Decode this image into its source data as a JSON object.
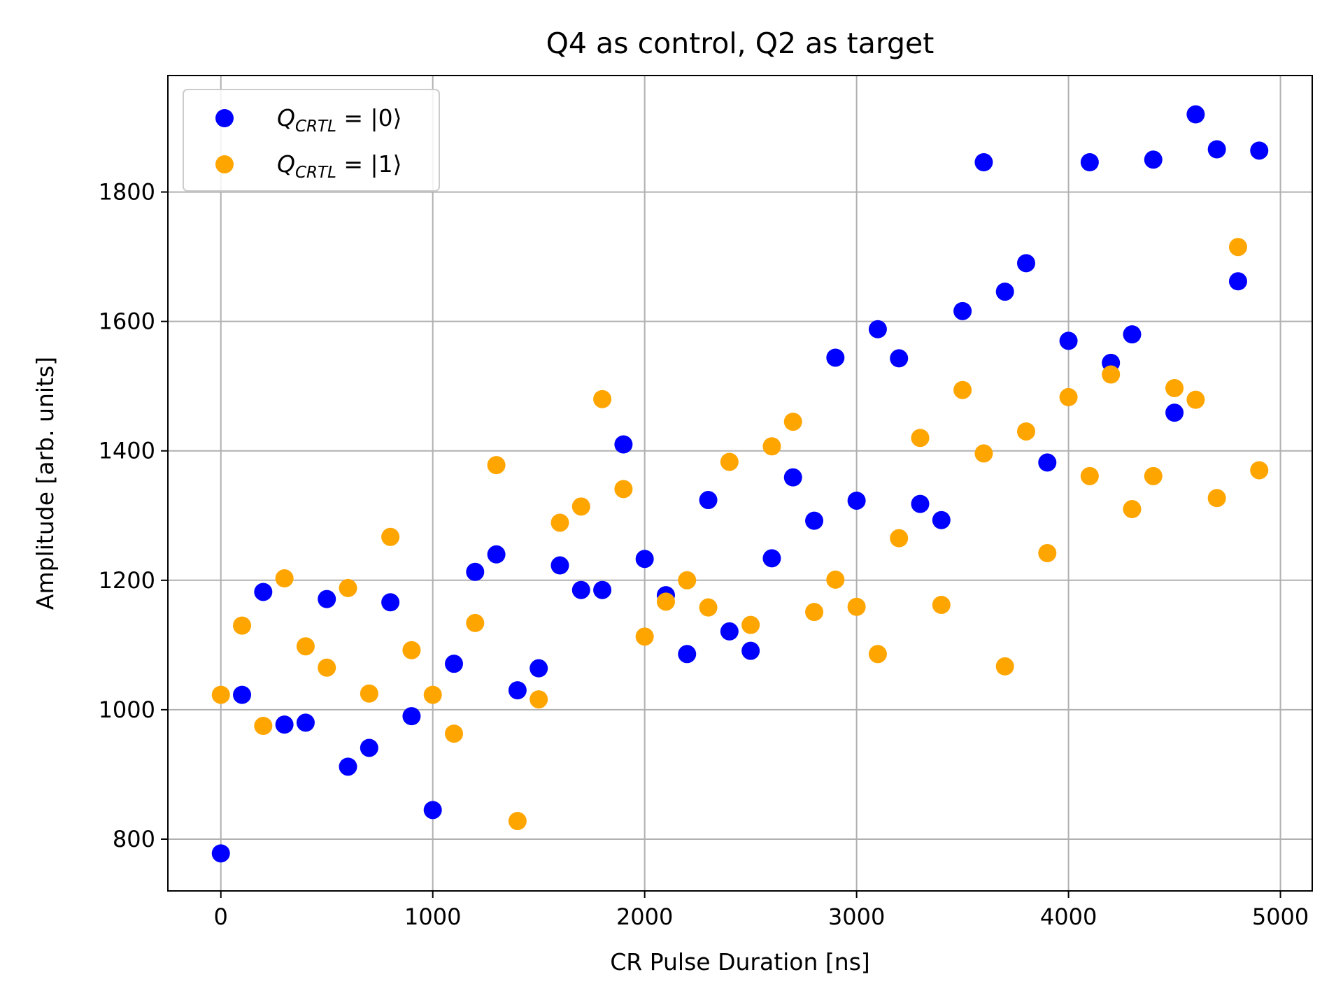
{
  "chart_data": {
    "type": "scatter",
    "title": "Q4 as control, Q2 as target",
    "xlabel": "CR Pulse Duration [ns]",
    "ylabel": "Amplitude [arb. units]",
    "xlim": [
      -250,
      5150
    ],
    "ylim": [
      720,
      1980
    ],
    "x_ticks": [
      0,
      1000,
      2000,
      3000,
      4000,
      5000
    ],
    "y_ticks": [
      800,
      1000,
      1200,
      1400,
      1600,
      1800
    ],
    "grid": true,
    "legend_position": "top-left",
    "x": [
      0,
      100,
      200,
      300,
      400,
      500,
      600,
      700,
      800,
      900,
      1000,
      1100,
      1200,
      1300,
      1400,
      1500,
      1600,
      1700,
      1800,
      1900,
      2000,
      2100,
      2200,
      2300,
      2400,
      2500,
      2600,
      2700,
      2800,
      2900,
      3000,
      3100,
      3200,
      3300,
      3400,
      3500,
      3600,
      3700,
      3800,
      3900,
      4000,
      4100,
      4200,
      4300,
      4400,
      4500,
      4600,
      4700,
      4800,
      4900
    ],
    "series": [
      {
        "name": "Q_CRTL = |0⟩",
        "legend_main": "Q",
        "legend_sub": "CRTL",
        "legend_rest": " = |0⟩",
        "color": "#0000ff",
        "values": [
          778,
          1023,
          1182,
          977,
          980,
          1171,
          912,
          941,
          1166,
          990,
          845,
          1071,
          1213,
          1240,
          1030,
          1064,
          1223,
          1185,
          1185,
          1410,
          1233,
          1177,
          1086,
          1324,
          1121,
          1091,
          1234,
          1359,
          1292,
          1544,
          1323,
          1588,
          1543,
          1318,
          1293,
          1616,
          1846,
          1646,
          1690,
          1382,
          1570,
          1846,
          1536,
          1580,
          1850,
          1459,
          1920,
          1866,
          1662,
          1864
        ]
      },
      {
        "name": "Q_CRTL = |1⟩",
        "legend_main": "Q",
        "legend_sub": "CRTL",
        "legend_rest": " = |1⟩",
        "color": "#ffa500",
        "values": [
          1023,
          1130,
          975,
          1203,
          1098,
          1065,
          1188,
          1025,
          1267,
          1092,
          1023,
          963,
          1134,
          1378,
          828,
          1016,
          1289,
          1314,
          1480,
          1341,
          1113,
          1167,
          1200,
          1158,
          1383,
          1131,
          1407,
          1445,
          1151,
          1201,
          1159,
          1086,
          1265,
          1420,
          1162,
          1494,
          1396,
          1067,
          1430,
          1242,
          1483,
          1361,
          1518,
          1310,
          1361,
          1497,
          1479,
          1327,
          1715,
          1370
        ]
      }
    ]
  }
}
